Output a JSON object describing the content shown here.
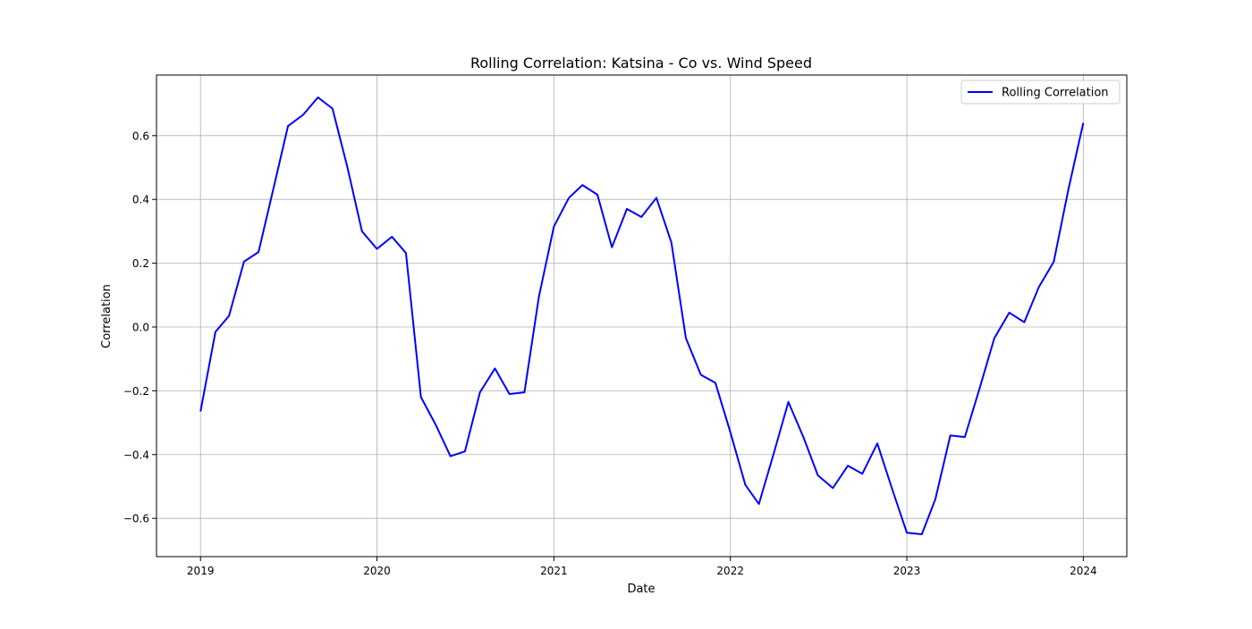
{
  "chart_data": {
    "type": "line",
    "title": "Rolling Correlation: Katsina - Co vs. Wind Speed",
    "xlabel": "Date",
    "ylabel": "Correlation",
    "x_ticks": [
      "2019",
      "2020",
      "2021",
      "2022",
      "2023",
      "2024"
    ],
    "y_ticks": [
      "−0.6",
      "−0.4",
      "−0.2",
      "0.0",
      "0.2",
      "0.4",
      "0.6"
    ],
    "y_tick_values": [
      -0.6,
      -0.4,
      -0.2,
      0.0,
      0.2,
      0.4,
      0.6
    ],
    "xlim": [
      "2018-10-02",
      "2024-03-31"
    ],
    "ylim": [
      -0.72,
      0.79
    ],
    "grid": true,
    "legend_position": "upper right",
    "series": [
      {
        "name": "Rolling Correlation",
        "color": "#0000ff",
        "x": [
          "2019-01",
          "2019-02",
          "2019-03",
          "2019-04",
          "2019-05",
          "2019-06",
          "2019-07",
          "2019-08",
          "2019-09",
          "2019-10",
          "2019-11",
          "2019-12",
          "2020-01",
          "2020-02",
          "2020-03",
          "2020-04",
          "2020-05",
          "2020-06",
          "2020-07",
          "2020-08",
          "2020-09",
          "2020-10",
          "2020-11",
          "2020-12",
          "2021-01",
          "2021-02",
          "2021-03",
          "2021-04",
          "2021-05",
          "2021-06",
          "2021-07",
          "2021-08",
          "2021-09",
          "2021-10",
          "2021-11",
          "2021-12",
          "2022-01",
          "2022-02",
          "2022-03",
          "2022-04",
          "2022-05",
          "2022-06",
          "2022-07",
          "2022-08",
          "2022-09",
          "2022-10",
          "2022-11",
          "2022-12",
          "2023-01",
          "2023-02",
          "2023-03",
          "2023-04",
          "2023-05",
          "2023-06",
          "2023-07",
          "2023-08",
          "2023-09",
          "2023-10",
          "2023-11",
          "2023-12",
          "2024-01"
        ],
        "y": [
          -0.265,
          -0.015,
          0.035,
          0.205,
          0.235,
          0.435,
          0.63,
          0.665,
          0.72,
          0.685,
          0.5,
          0.3,
          0.245,
          0.283,
          0.232,
          -0.22,
          -0.305,
          -0.405,
          -0.39,
          -0.205,
          -0.13,
          -0.21,
          -0.205,
          0.095,
          0.315,
          0.405,
          0.445,
          0.415,
          0.25,
          0.37,
          0.345,
          0.405,
          0.265,
          -0.035,
          -0.15,
          -0.175,
          -0.33,
          -0.495,
          -0.555,
          -0.395,
          -0.235,
          -0.345,
          -0.465,
          -0.505,
          -0.435,
          -0.46,
          -0.365,
          -0.505,
          -0.645,
          -0.65,
          -0.54,
          -0.34,
          -0.345,
          -0.19,
          -0.035,
          0.045,
          0.015,
          0.125,
          0.205,
          0.43,
          0.64
        ]
      }
    ]
  }
}
